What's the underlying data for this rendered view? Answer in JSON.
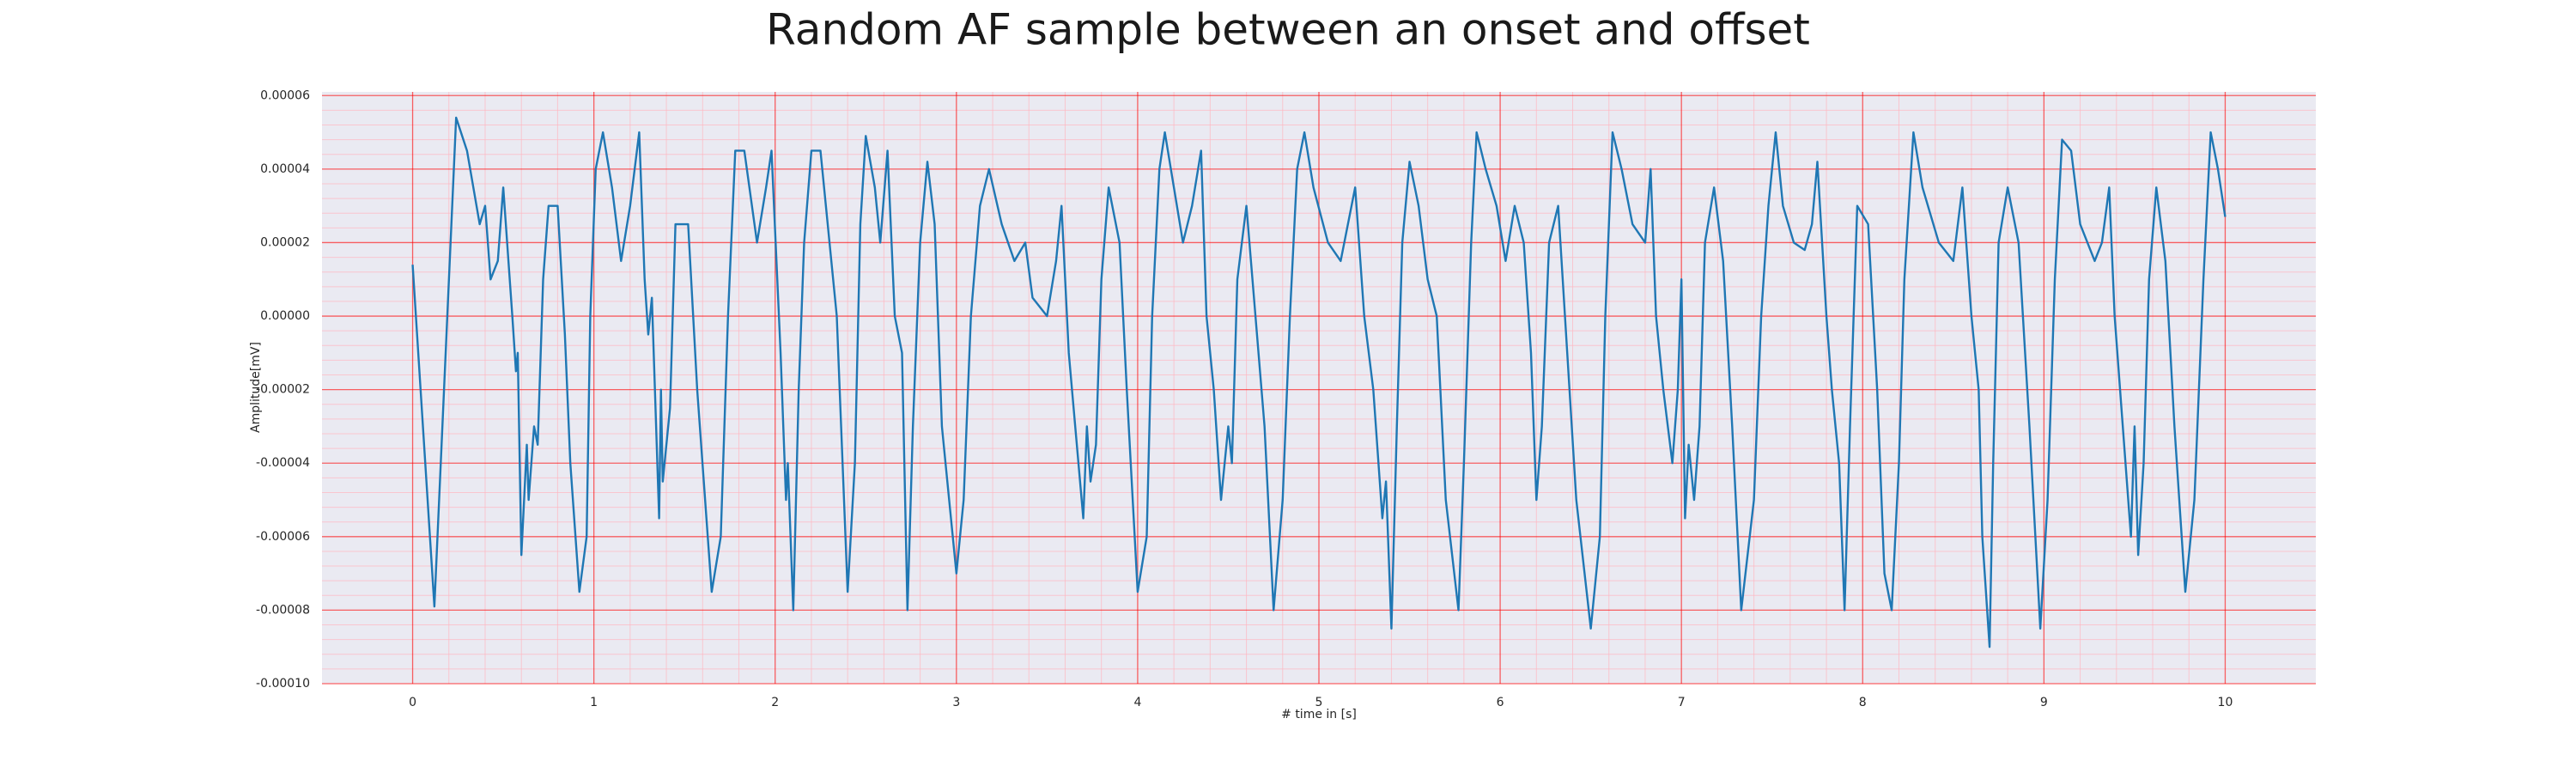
{
  "chart_data": {
    "type": "line",
    "title": "Random AF sample between an onset and offset",
    "xlabel": "# time in [s]",
    "ylabel": "Amplitude[mV]",
    "x": [
      0,
      0.12,
      0.24,
      0.3,
      0.37,
      0.4,
      0.43,
      0.47,
      0.5,
      0.55,
      0.57,
      0.58,
      0.6,
      0.63,
      0.64,
      0.67,
      0.69,
      0.72,
      0.75,
      0.8,
      0.84,
      0.87,
      0.92,
      0.96,
      0.98,
      1.01,
      1.05,
      1.1,
      1.15,
      1.2,
      1.25,
      1.28,
      1.3,
      1.32,
      1.36,
      1.37,
      1.38,
      1.42,
      1.45,
      1.52,
      1.57,
      1.65,
      1.7,
      1.74,
      1.78,
      1.83,
      1.9,
      1.95,
      1.98,
      2.03,
      2.06,
      2.07,
      2.1,
      2.13,
      2.16,
      2.2,
      2.25,
      2.3,
      2.34,
      2.38,
      2.4,
      2.44,
      2.47,
      2.5,
      2.55,
      2.58,
      2.62,
      2.66,
      2.7,
      2.73,
      2.76,
      2.8,
      2.84,
      2.88,
      2.92,
      3,
      3.04,
      3.08,
      3.13,
      3.18,
      3.25,
      3.32,
      3.38,
      3.42,
      3.5,
      3.55,
      3.58,
      3.62,
      3.7,
      3.72,
      3.74,
      3.77,
      3.8,
      3.84,
      3.9,
      3.94,
      4,
      4.05,
      4.08,
      4.12,
      4.15,
      4.2,
      4.25,
      4.3,
      4.35,
      4.38,
      4.42,
      4.46,
      4.5,
      4.52,
      4.55,
      4.6,
      4.65,
      4.7,
      4.75,
      4.8,
      4.84,
      4.88,
      4.92,
      4.97,
      5.05,
      5.12,
      5.2,
      5.25,
      5.3,
      5.35,
      5.37,
      5.4,
      5.43,
      5.46,
      5.5,
      5.55,
      5.6,
      5.65,
      5.7,
      5.77,
      5.8,
      5.84,
      5.87,
      5.92,
      5.98,
      6.03,
      6.08,
      6.13,
      6.17,
      6.2,
      6.23,
      6.27,
      6.32,
      6.37,
      6.42,
      6.5,
      6.55,
      6.58,
      6.62,
      6.67,
      6.73,
      6.8,
      6.83,
      6.86,
      6.9,
      6.95,
      6.98,
      7,
      7.02,
      7.04,
      7.07,
      7.1,
      7.13,
      7.18,
      7.23,
      7.28,
      7.33,
      7.4,
      7.44,
      7.48,
      7.52,
      7.56,
      7.62,
      7.68,
      7.72,
      7.75,
      7.8,
      7.83,
      7.87,
      7.9,
      7.93,
      7.97,
      8.03,
      8.08,
      8.12,
      8.16,
      8.2,
      8.23,
      8.28,
      8.33,
      8.42,
      8.5,
      8.55,
      8.6,
      8.64,
      8.66,
      8.7,
      8.72,
      8.75,
      8.8,
      8.86,
      8.92,
      8.98,
      9.02,
      9.06,
      9.1,
      9.15,
      9.2,
      9.28,
      9.32,
      9.36,
      9.39,
      9.42,
      9.48,
      9.5,
      9.52,
      9.55,
      9.58,
      9.62,
      9.67,
      9.72,
      9.78,
      9.83,
      9.88,
      9.92,
      9.96,
      10
    ],
    "series": [
      {
        "color": "#1f77b4",
        "values": [
          1.4e-05,
          -7.9e-05,
          5.4e-05,
          4.5e-05,
          2.5e-05,
          3e-05,
          1e-05,
          1.5e-05,
          3.5e-05,
          0,
          -1.5e-05,
          -1e-05,
          -6.5e-05,
          -3.5e-05,
          -5e-05,
          -3e-05,
          -3.5e-05,
          1e-05,
          3e-05,
          3e-05,
          -5e-06,
          -4e-05,
          -7.5e-05,
          -6e-05,
          0,
          4e-05,
          5e-05,
          3.5e-05,
          1.5e-05,
          3e-05,
          5e-05,
          1e-05,
          -5e-06,
          5e-06,
          -5.5e-05,
          -2e-05,
          -4.5e-05,
          -2.5e-05,
          2.5e-05,
          2.5e-05,
          -2e-05,
          -7.5e-05,
          -6e-05,
          0,
          4.5e-05,
          4.5e-05,
          2e-05,
          3.5e-05,
          4.5e-05,
          -1e-05,
          -5e-05,
          -4e-05,
          -8e-05,
          -2e-05,
          2e-05,
          4.5e-05,
          4.5e-05,
          2e-05,
          0,
          -5e-05,
          -7.5e-05,
          -4e-05,
          2.5e-05,
          4.9e-05,
          3.5e-05,
          2e-05,
          4.5e-05,
          0,
          -1e-05,
          -8e-05,
          -3e-05,
          2e-05,
          4.2e-05,
          2.5e-05,
          -3e-05,
          -7e-05,
          -5e-05,
          0,
          3e-05,
          4e-05,
          2.5e-05,
          1.5e-05,
          2e-05,
          5e-06,
          0,
          1.5e-05,
          3e-05,
          -1e-05,
          -5.5e-05,
          -3e-05,
          -4.5e-05,
          -3.5e-05,
          1e-05,
          3.5e-05,
          2e-05,
          -2e-05,
          -7.5e-05,
          -6e-05,
          0,
          4e-05,
          5e-05,
          3.5e-05,
          2e-05,
          3e-05,
          4.5e-05,
          0,
          -2e-05,
          -5e-05,
          -3e-05,
          -4e-05,
          1e-05,
          3e-05,
          0,
          -3e-05,
          -8e-05,
          -5e-05,
          0,
          4e-05,
          5e-05,
          3.5e-05,
          2e-05,
          1.5e-05,
          3.5e-05,
          0,
          -2e-05,
          -5.5e-05,
          -4.5e-05,
          -8.5e-05,
          -3e-05,
          2e-05,
          4.2e-05,
          3e-05,
          1e-05,
          0,
          -5e-05,
          -8e-05,
          -4e-05,
          2e-05,
          5e-05,
          4e-05,
          3e-05,
          1.5e-05,
          3e-05,
          2e-05,
          -1e-05,
          -5e-05,
          -3e-05,
          2e-05,
          3e-05,
          -1e-05,
          -5e-05,
          -8.5e-05,
          -6e-05,
          0,
          5e-05,
          4e-05,
          2.5e-05,
          2e-05,
          4e-05,
          0,
          -2e-05,
          -4e-05,
          -2e-05,
          1e-05,
          -5.5e-05,
          -3.5e-05,
          -5e-05,
          -3e-05,
          2e-05,
          3.5e-05,
          1.5e-05,
          -3e-05,
          -8e-05,
          -5e-05,
          0,
          3e-05,
          5e-05,
          3e-05,
          2e-05,
          1.8e-05,
          2.5e-05,
          4.2e-05,
          0,
          -2e-05,
          -4e-05,
          -8e-05,
          -3e-05,
          3e-05,
          2.5e-05,
          -2e-05,
          -7e-05,
          -8e-05,
          -4e-05,
          1e-05,
          5e-05,
          3.5e-05,
          2e-05,
          1.5e-05,
          3.5e-05,
          0,
          -2e-05,
          -6e-05,
          -9e-05,
          -4e-05,
          2e-05,
          3.5e-05,
          2e-05,
          -3e-05,
          -8.5e-05,
          -5e-05,
          1e-05,
          4.8e-05,
          4.5e-05,
          2.5e-05,
          1.5e-05,
          2e-05,
          3.5e-05,
          0,
          -2e-05,
          -6e-05,
          -3e-05,
          -6.5e-05,
          -4e-05,
          1e-05,
          3.5e-05,
          1.5e-05,
          -3e-05,
          -7.5e-05,
          -5e-05,
          1e-05,
          5e-05,
          4e-05,
          2.7e-05
        ]
      }
    ],
    "xlim": [
      -0.5,
      10.5
    ],
    "xticks": [
      0,
      1,
      2,
      3,
      4,
      5,
      6,
      7,
      8,
      9,
      10
    ],
    "ylim": [
      -0.0001,
      6.1e-05
    ],
    "yticks": [
      {
        "value": -0.0001,
        "label": "-0.00010"
      },
      {
        "value": -8e-05,
        "label": "-0.00008"
      },
      {
        "value": -6e-05,
        "label": "-0.00006"
      },
      {
        "value": -4e-05,
        "label": "-0.00004"
      },
      {
        "value": -2e-05,
        "label": "-0.00002"
      },
      {
        "value": 0,
        "label": "0.00000"
      },
      {
        "value": 2e-05,
        "label": "0.00002"
      },
      {
        "value": 4e-05,
        "label": "0.00004"
      },
      {
        "value": 6e-05,
        "label": "0.00006"
      }
    ],
    "grid": true,
    "minor_grid": true
  }
}
